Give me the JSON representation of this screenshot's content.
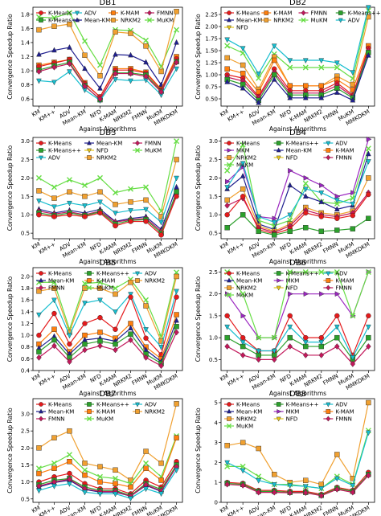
{
  "figure": {
    "algorithms": [
      "KM",
      "KM++",
      "ADV",
      "Mean-KM",
      "NFD",
      "K-MAM",
      "NRKM2",
      "FMNN",
      "MuKM",
      "MMKDKM"
    ],
    "xlabel": "Against Algorithms",
    "ylabel": "Convergence Speedup Ratio",
    "styles": {
      "K-Means": {
        "color": "#e41a1c",
        "marker": "circle"
      },
      "K-Means++": {
        "color": "#2ca02c",
        "marker": "square"
      },
      "ADV": {
        "color": "#17becf",
        "marker": "tri-down"
      },
      "Mean-KM": {
        "color": "#1f1f8f",
        "marker": "tri-up"
      },
      "K-MAM": {
        "color": "#ff7f0e",
        "marker": "square"
      },
      "NRKM2": {
        "color": "#f0a030",
        "marker": "square"
      },
      "FMNN": {
        "color": "#c2185b",
        "marker": "diamond"
      },
      "MuKM": {
        "color": "#66dd44",
        "marker": "x"
      },
      "MKM": {
        "color": "#9b27c0",
        "marker": "tri-right"
      },
      "NFD": {
        "color": "#e6c619",
        "marker": "tri-down"
      }
    }
  },
  "chart_data": [
    {
      "type": "line",
      "title": "DB1",
      "ylim": [
        0.5,
        1.9
      ],
      "yticks": [
        0.6,
        0.8,
        1.0,
        1.2,
        1.4,
        1.6,
        1.8
      ],
      "legend": [
        "K-Means",
        "ADV",
        "K-MAM",
        "FMNN",
        "K-Means++",
        "Mean-KM",
        "NRKM2",
        "MuKM"
      ],
      "legend_cols": 4,
      "series": [
        {
          "name": "MuKM",
          "values": [
            1.76,
            1.75,
            1.82,
            1.42,
            1.08,
            1.58,
            1.57,
            1.43,
            1.06,
            1.58
          ]
        },
        {
          "name": "NRKM2",
          "values": [
            1.58,
            1.63,
            1.66,
            1.22,
            0.93,
            1.55,
            1.53,
            1.35,
            0.99,
            1.84
          ]
        },
        {
          "name": "Mean-KM",
          "values": [
            1.23,
            1.29,
            1.33,
            1.03,
            0.75,
            1.23,
            1.22,
            1.12,
            0.8,
            1.4
          ]
        },
        {
          "name": "K-MAM",
          "values": [
            1.08,
            1.12,
            1.16,
            0.83,
            0.63,
            1.03,
            1.03,
            0.98,
            0.74,
            1.2
          ]
        },
        {
          "name": "K-Means",
          "values": [
            1.06,
            1.11,
            1.16,
            0.82,
            0.63,
            1.01,
            1.01,
            0.97,
            0.73,
            1.17
          ]
        },
        {
          "name": "K-Means++",
          "values": [
            1.01,
            1.07,
            1.12,
            0.79,
            0.59,
            0.97,
            0.97,
            0.94,
            0.71,
            1.13
          ]
        },
        {
          "name": "ADV",
          "values": [
            0.86,
            0.84,
            0.99,
            0.73,
            0.58,
            0.88,
            0.86,
            0.87,
            0.66,
            1.03
          ]
        },
        {
          "name": "FMNN",
          "values": [
            0.99,
            1.05,
            1.1,
            0.78,
            0.6,
            0.96,
            0.96,
            0.92,
            0.7,
            1.12
          ]
        }
      ]
    },
    {
      "type": "line",
      "title": "DB2",
      "ylim": [
        0.35,
        2.4
      ],
      "yticks": [
        0.5,
        0.75,
        1.0,
        1.25,
        1.5,
        1.75,
        2.0,
        2.25
      ],
      "legend": [
        "K-Means",
        "K-MAM",
        "FMNN",
        "K-Means++",
        "Mean-KM",
        "NRKM2",
        "MuKM",
        "ADV",
        "NFD"
      ],
      "legend_cols": 4,
      "series": [
        {
          "name": "MuKM",
          "values": [
            1.6,
            1.45,
            0.93,
            1.43,
            1.15,
            1.15,
            1.15,
            1.15,
            0.92,
            2.33
          ]
        },
        {
          "name": "NRKM2",
          "values": [
            1.35,
            1.2,
            0.7,
            1.37,
            0.77,
            0.77,
            0.77,
            0.97,
            0.8,
            2.2
          ]
        },
        {
          "name": "K-MAM",
          "values": [
            1.12,
            1.03,
            0.64,
            1.3,
            0.77,
            0.77,
            0.77,
            0.9,
            0.69,
            1.6
          ]
        },
        {
          "name": "K-Means",
          "values": [
            1.0,
            0.93,
            0.55,
            1.12,
            0.67,
            0.67,
            0.67,
            0.83,
            0.58,
            1.55
          ]
        },
        {
          "name": "FMNN",
          "values": [
            0.95,
            0.87,
            0.52,
            1.05,
            0.62,
            0.62,
            0.62,
            0.78,
            0.55,
            1.5
          ]
        },
        {
          "name": "K-Means++",
          "values": [
            0.9,
            0.8,
            0.47,
            1.0,
            0.58,
            0.58,
            0.58,
            0.72,
            0.52,
            1.46
          ]
        },
        {
          "name": "Mean-KM",
          "values": [
            0.85,
            0.72,
            0.42,
            0.9,
            0.52,
            0.52,
            0.52,
            0.63,
            0.47,
            1.4
          ]
        },
        {
          "name": "ADV",
          "values": [
            1.73,
            1.55,
            1.02,
            1.6,
            1.3,
            1.3,
            1.3,
            1.25,
            1.05,
            2.4
          ]
        }
      ]
    },
    {
      "type": "line",
      "title": "DB3",
      "ylim": [
        0.35,
        3.1
      ],
      "yticks": [
        0.5,
        1.0,
        1.5,
        2.0,
        2.5,
        3.0
      ],
      "legend": [
        "K-Means",
        "Mean-KM",
        "FMNN",
        "K-Means++",
        "NFD",
        "MuKM",
        "ADV",
        "NRKM2"
      ],
      "legend_cols": 3,
      "series": [
        {
          "name": "MuKM",
          "values": [
            2.0,
            1.75,
            1.95,
            1.8,
            2.0,
            1.6,
            1.7,
            1.75,
            1.1,
            3.0
          ]
        },
        {
          "name": "NRKM2",
          "values": [
            1.65,
            1.45,
            1.62,
            1.5,
            1.62,
            1.28,
            1.35,
            1.4,
            0.95,
            2.5
          ]
        },
        {
          "name": "ADV",
          "values": [
            1.38,
            1.22,
            1.32,
            1.25,
            1.35,
            1.05,
            1.12,
            1.15,
            0.8,
            2.0
          ]
        },
        {
          "name": "Mean-KM",
          "values": [
            1.15,
            1.05,
            1.12,
            1.05,
            1.15,
            0.82,
            0.9,
            0.95,
            0.6,
            1.75
          ]
        },
        {
          "name": "FMNN",
          "values": [
            1.1,
            1.02,
            1.08,
            1.0,
            1.1,
            0.8,
            0.87,
            0.9,
            0.55,
            1.55
          ]
        },
        {
          "name": "K-Means++",
          "values": [
            1.05,
            0.98,
            1.05,
            0.98,
            1.08,
            0.75,
            0.85,
            0.87,
            0.5,
            1.62
          ]
        },
        {
          "name": "K-Means",
          "values": [
            1.0,
            0.95,
            1.0,
            0.95,
            1.05,
            0.7,
            0.82,
            0.82,
            0.45,
            1.5
          ]
        }
      ]
    },
    {
      "type": "line",
      "title": "DB4",
      "ylim": [
        0.35,
        3.1
      ],
      "yticks": [
        0.5,
        1.0,
        1.5,
        2.0,
        2.5,
        3.0
      ],
      "legend": [
        "K-Means",
        "K-Means++",
        "ADV",
        "MKM",
        "Mean-KM",
        "K-MAM",
        "NRKM2",
        "NFD",
        "FMNN",
        "MuKM"
      ],
      "legend_cols": 3,
      "series": [
        {
          "name": "MKM",
          "values": [
            1.9,
            2.3,
            0.95,
            0.9,
            2.2,
            2.0,
            1.8,
            1.5,
            1.6,
            3.05
          ]
        },
        {
          "name": "MuKM",
          "values": [
            2.2,
            2.9,
            0.85,
            0.7,
            0.85,
            1.85,
            1.35,
            1.3,
            1.45,
            2.8
          ]
        },
        {
          "name": "Mean-KM",
          "values": [
            1.7,
            2.05,
            0.75,
            0.6,
            1.8,
            1.5,
            1.35,
            1.15,
            1.25,
            2.65
          ]
        },
        {
          "name": "NRKM2",
          "values": [
            1.4,
            1.7,
            0.7,
            0.55,
            0.75,
            1.2,
            1.05,
            1.0,
            1.1,
            2.0
          ]
        },
        {
          "name": "FMNN",
          "values": [
            1.25,
            1.45,
            0.65,
            0.52,
            0.7,
            1.12,
            1.0,
            0.95,
            1.05,
            1.6
          ]
        },
        {
          "name": "K-Means",
          "values": [
            1.0,
            1.5,
            0.6,
            0.48,
            0.62,
            1.05,
            0.95,
            0.9,
            0.98,
            1.55
          ]
        },
        {
          "name": "K-Means++",
          "values": [
            0.65,
            1.0,
            0.55,
            0.45,
            0.55,
            0.65,
            0.55,
            0.58,
            0.62,
            0.9
          ]
        },
        {
          "name": "ADV",
          "values": [
            1.75,
            2.4,
            0.95,
            0.8,
            1.0,
            1.7,
            1.6,
            1.4,
            1.3,
            2.45
          ]
        }
      ]
    },
    {
      "type": "line",
      "title": "DB5",
      "ylim": [
        0.4,
        2.15
      ],
      "yticks": [
        0.4,
        0.6,
        0.8,
        1.0,
        1.2,
        1.4,
        1.6,
        1.8,
        2.0
      ],
      "legend": [
        "K-Means",
        "K-Means++",
        "ADV",
        "Mean-KM",
        "K-MAM",
        "NRKM2",
        "FMNN",
        "MuKM"
      ],
      "legend_cols": 3,
      "series": [
        {
          "name": "MuKM",
          "values": [
            1.9,
            1.9,
            1.1,
            1.88,
            1.9,
            1.8,
            1.95,
            1.6,
            0.98,
            2.07
          ]
        },
        {
          "name": "NRKM2",
          "values": [
            1.75,
            1.8,
            1.05,
            1.8,
            1.8,
            1.7,
            1.9,
            1.5,
            0.9,
            2.0
          ]
        },
        {
          "name": "ADV",
          "values": [
            1.35,
            1.6,
            1.0,
            1.55,
            1.6,
            1.4,
            1.7,
            1.1,
            0.8,
            1.75
          ]
        },
        {
          "name": "K-Means",
          "values": [
            1.0,
            1.37,
            0.85,
            1.2,
            1.3,
            1.1,
            1.65,
            0.95,
            0.67,
            1.65
          ]
        },
        {
          "name": "K-MAM",
          "values": [
            0.85,
            1.1,
            0.72,
            1.0,
            1.05,
            0.95,
            1.2,
            0.8,
            0.6,
            1.35
          ]
        },
        {
          "name": "Mean-KM",
          "values": [
            0.78,
            0.98,
            0.68,
            0.92,
            0.95,
            0.9,
            1.12,
            0.75,
            0.55,
            1.25
          ]
        },
        {
          "name": "K-Means++",
          "values": [
            0.72,
            0.92,
            0.62,
            0.85,
            0.9,
            0.85,
            1.02,
            0.68,
            0.52,
            1.15
          ]
        },
        {
          "name": "FMNN",
          "values": [
            0.62,
            0.82,
            0.55,
            0.75,
            0.82,
            0.75,
            0.92,
            0.62,
            0.48,
            1.05
          ]
        }
      ]
    },
    {
      "type": "line",
      "title": "DB6",
      "ylim": [
        0.25,
        2.6
      ],
      "yticks": [
        0.5,
        1.0,
        1.5,
        2.0,
        2.5
      ],
      "legend": [
        "K-Means",
        "K-Means++",
        "ADV",
        "Mean-KM",
        "MKM",
        "K-MAM",
        "NRKM2",
        "NFD",
        "FMNN",
        "MuKM"
      ],
      "legend_cols": 3,
      "series": [
        {
          "name": "MKM",
          "values": [
            2.0,
            1.5,
            1.0,
            1.0,
            2.0,
            2.0,
            2.0,
            2.0,
            1.5,
            2.5
          ]
        },
        {
          "name": "MuKM",
          "values": [
            2.5,
            2.0,
            1.0,
            1.0,
            2.5,
            2.5,
            2.5,
            2.5,
            1.5,
            2.5
          ]
        },
        {
          "name": "K-Means",
          "values": [
            1.5,
            1.0,
            0.7,
            0.7,
            1.5,
            1.0,
            1.0,
            1.5,
            0.6,
            1.5
          ]
        },
        {
          "name": "K-Means++",
          "values": [
            1.0,
            0.8,
            0.6,
            0.6,
            1.0,
            0.8,
            0.8,
            1.0,
            0.5,
            1.0
          ]
        },
        {
          "name": "FMNN",
          "values": [
            0.8,
            0.6,
            0.5,
            0.5,
            0.8,
            0.6,
            0.6,
            0.8,
            0.4,
            0.8
          ]
        },
        {
          "name": "ADV",
          "values": [
            1.25,
            0.9,
            0.7,
            0.7,
            1.25,
            0.9,
            0.9,
            1.25,
            0.55,
            1.25
          ]
        }
      ]
    },
    {
      "type": "line",
      "title": "DB7",
      "ylim": [
        0.4,
        3.45
      ],
      "yticks": [
        0.5,
        1.0,
        1.5,
        2.0,
        2.5,
        3.0
      ],
      "legend": [
        "K-Means",
        "K-Means++",
        "ADV",
        "Mean-KM",
        "K-MAM",
        "NRKM2",
        "FMNN",
        "MuKM"
      ],
      "legend_cols": 3,
      "series": [
        {
          "name": "NRKM2",
          "values": [
            2.0,
            2.3,
            2.5,
            1.55,
            1.45,
            1.35,
            1.05,
            1.9,
            1.55,
            3.3
          ]
        },
        {
          "name": "MuKM",
          "values": [
            1.4,
            1.55,
            1.8,
            1.35,
            1.15,
            1.1,
            0.95,
            1.55,
            1.15,
            2.35
          ]
        },
        {
          "name": "K-MAM",
          "values": [
            1.25,
            1.4,
            1.6,
            1.2,
            1.0,
            0.95,
            0.85,
            1.4,
            1.05,
            2.3
          ]
        },
        {
          "name": "K-Means",
          "values": [
            1.0,
            1.15,
            1.25,
            0.95,
            0.8,
            0.8,
            0.65,
            1.05,
            0.85,
            1.6
          ]
        },
        {
          "name": "K-Means++",
          "values": [
            0.92,
            1.05,
            1.1,
            0.85,
            0.75,
            0.75,
            0.6,
            0.95,
            0.78,
            1.5
          ]
        },
        {
          "name": "Mean-KM",
          "values": [
            0.85,
            0.98,
            1.05,
            0.78,
            0.7,
            0.7,
            0.58,
            0.9,
            0.72,
            1.45
          ]
        },
        {
          "name": "FMNN",
          "values": [
            0.88,
            1.0,
            1.08,
            0.8,
            0.72,
            0.72,
            0.58,
            0.92,
            0.74,
            1.45
          ]
        },
        {
          "name": "ADV",
          "values": [
            0.75,
            0.88,
            0.95,
            0.7,
            0.65,
            0.65,
            0.52,
            0.8,
            0.66,
            1.35
          ]
        }
      ]
    },
    {
      "type": "line",
      "title": "DB8",
      "ylim": [
        0.0,
        5.2
      ],
      "yticks": [
        0,
        1,
        2,
        3,
        4,
        5
      ],
      "legend": [
        "K-Means",
        "K-Means++",
        "ADV",
        "Mean-KM",
        "MKM",
        "K-MAM",
        "NRKM2",
        "NFD",
        "FMNN",
        "MuKM"
      ],
      "legend_cols": 3,
      "series": [
        {
          "name": "NRKM2",
          "values": [
            2.85,
            3.0,
            2.7,
            1.4,
            1.0,
            1.1,
            0.9,
            2.4,
            1.2,
            5.0
          ]
        },
        {
          "name": "MuKM",
          "values": [
            1.8,
            1.8,
            1.3,
            0.9,
            0.9,
            0.8,
            0.7,
            1.3,
            0.9,
            3.6
          ]
        },
        {
          "name": "ADV",
          "values": [
            2.0,
            1.6,
            1.1,
            0.9,
            0.85,
            0.8,
            0.7,
            1.2,
            0.85,
            3.5
          ]
        },
        {
          "name": "K-Means",
          "values": [
            1.0,
            0.95,
            0.6,
            0.6,
            0.55,
            0.55,
            0.4,
            0.75,
            0.6,
            1.5
          ]
        },
        {
          "name": "K-Means++",
          "values": [
            0.95,
            0.9,
            0.55,
            0.55,
            0.5,
            0.5,
            0.35,
            0.7,
            0.55,
            1.4
          ]
        },
        {
          "name": "FMNN",
          "values": [
            0.9,
            0.85,
            0.5,
            0.5,
            0.48,
            0.48,
            0.33,
            0.65,
            0.5,
            1.35
          ]
        }
      ]
    }
  ]
}
